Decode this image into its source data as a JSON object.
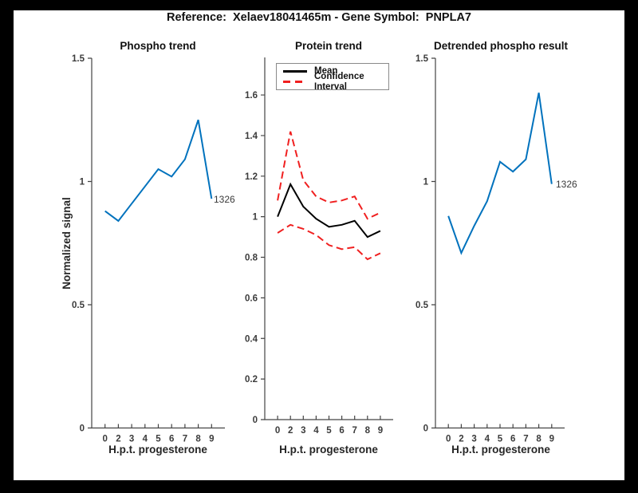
{
  "figure": {
    "title": "Reference:  Xelaev18041465m - Gene Symbol:  PNPLA7",
    "background_color": "#ffffff",
    "frame_color": "#000000"
  },
  "colors": {
    "line_blue": "#0072bd",
    "ci_red": "#f02020",
    "mean_black": "#000000",
    "axis": "#444444",
    "tick_text": "#3b3b3b"
  },
  "chart_data": [
    {
      "id": "phospho",
      "type": "line",
      "title": "Phospho trend",
      "xlabel": "H.p.t. progesterone",
      "ylabel": "Normalized signal",
      "x": [
        1,
        2,
        3,
        4,
        5,
        6,
        7,
        8,
        9
      ],
      "xtick_labels": [
        "0",
        "2",
        "3",
        "4",
        "5",
        "6",
        "7",
        "8",
        "9"
      ],
      "xlim": [
        0,
        10
      ],
      "ylim": [
        0,
        1.5
      ],
      "yticks": [
        0,
        0.5,
        1,
        1.5
      ],
      "ytick_labels": [
        "0",
        "0.5",
        "1",
        "1.5"
      ],
      "grid": false,
      "series": [
        {
          "name": "phospho-signal",
          "color": "#0072bd",
          "dash": "",
          "width": 2,
          "values": [
            0.88,
            0.84,
            0.91,
            0.98,
            1.05,
            1.02,
            1.09,
            1.25,
            0.93
          ]
        }
      ],
      "end_label": "1326"
    },
    {
      "id": "protein",
      "type": "line",
      "title": "Protein trend",
      "xlabel": "H.p.t. progesterone",
      "ylabel": "",
      "x": [
        1,
        2,
        3,
        4,
        5,
        6,
        7,
        8,
        9
      ],
      "xtick_labels": [
        "0",
        "2",
        "3",
        "4",
        "5",
        "6",
        "7",
        "8",
        "9"
      ],
      "xlim": [
        0,
        10
      ],
      "ylim": [
        0,
        1.785
      ],
      "yticks": [
        0,
        0.2,
        0.4,
        0.6,
        0.8,
        1,
        1.2,
        1.4,
        1.6
      ],
      "ytick_labels": [
        "0",
        "0.2",
        "0.4",
        "0.6",
        "0.8",
        "1",
        "1.2",
        "1.4",
        "1.6"
      ],
      "grid": false,
      "legend_position": "northwest",
      "legend": [
        {
          "label": "Mean",
          "color": "#000000",
          "dashed": false
        },
        {
          "label": "Confidence Interval",
          "color": "#f02020",
          "dashed": true
        }
      ],
      "series": [
        {
          "name": "ci-upper",
          "color": "#f02020",
          "dash": "9 5",
          "width": 2,
          "values": [
            1.08,
            1.42,
            1.18,
            1.1,
            1.07,
            1.08,
            1.1,
            0.99,
            1.02
          ]
        },
        {
          "name": "ci-lower",
          "color": "#f02020",
          "dash": "9 5",
          "width": 2,
          "values": [
            0.92,
            0.96,
            0.94,
            0.91,
            0.86,
            0.84,
            0.85,
            0.79,
            0.82
          ]
        },
        {
          "name": "mean",
          "color": "#000000",
          "dash": "",
          "width": 2,
          "values": [
            1.0,
            1.16,
            1.05,
            0.99,
            0.95,
            0.96,
            0.98,
            0.9,
            0.93
          ]
        }
      ],
      "end_label": ""
    },
    {
      "id": "detrended",
      "type": "line",
      "title": "Detrended phospho result",
      "xlabel": "H.p.t. progesterone",
      "ylabel": "",
      "x": [
        1,
        2,
        3,
        4,
        5,
        6,
        7,
        8,
        9
      ],
      "xtick_labels": [
        "0",
        "2",
        "3",
        "4",
        "5",
        "6",
        "7",
        "8",
        "9"
      ],
      "xlim": [
        0,
        10
      ],
      "ylim": [
        0,
        1.5
      ],
      "yticks": [
        0,
        0.5,
        1,
        1.5
      ],
      "ytick_labels": [
        "0",
        "0.5",
        "1",
        "1.5"
      ],
      "grid": false,
      "series": [
        {
          "name": "detrended-signal",
          "color": "#0072bd",
          "dash": "",
          "width": 2,
          "values": [
            0.86,
            0.71,
            0.82,
            0.92,
            1.08,
            1.04,
            1.09,
            1.36,
            0.99
          ]
        }
      ],
      "end_label": "1326"
    }
  ]
}
